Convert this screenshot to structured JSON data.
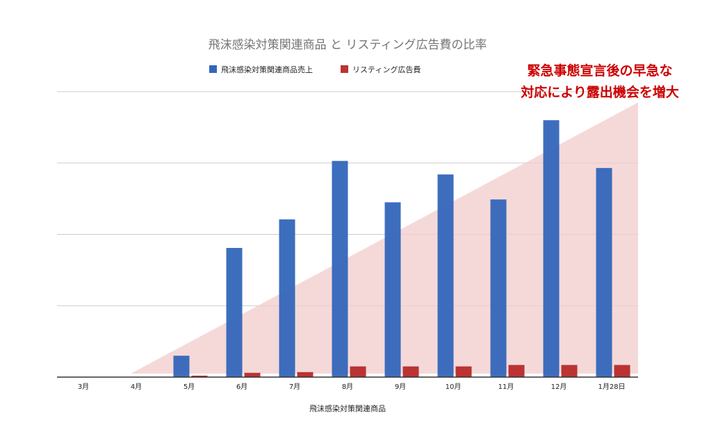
{
  "chart_data": {
    "type": "bar",
    "title": "飛沫感染対策関連商品 と リスティング広告費の比率",
    "xlabel": "飛沫感染対策関連商品",
    "ylabel": "",
    "categories": [
      "3月",
      "4月",
      "5月",
      "6月",
      "7月",
      "8月",
      "9月",
      "10月",
      "11月",
      "12月",
      "1月28日"
    ],
    "series": [
      {
        "name": "飛沫感染対策関連商品売上",
        "color": "#3366bb",
        "values": [
          0,
          0,
          30,
          181,
          221,
          303,
          245,
          284,
          249,
          360,
          293
        ]
      },
      {
        "name": "リスティング広告費",
        "color": "#bb3333",
        "values": [
          0,
          0,
          2,
          6,
          7,
          15,
          15,
          15,
          17,
          17,
          17
        ]
      }
    ],
    "ylim": [
      0,
      400
    ],
    "gridlines": [
      0,
      100,
      200,
      300,
      400
    ],
    "grid": true,
    "legend": "top",
    "annotation": {
      "lines": [
        "緊急事態宣言後の早急な",
        "対応により露出機会を増大"
      ],
      "color": "#cc0000"
    },
    "trend_wedge": {
      "color": "#f2cccc",
      "from_category": "4月",
      "to_category": "1月28日",
      "y_start": 0,
      "y_end": 380
    }
  }
}
